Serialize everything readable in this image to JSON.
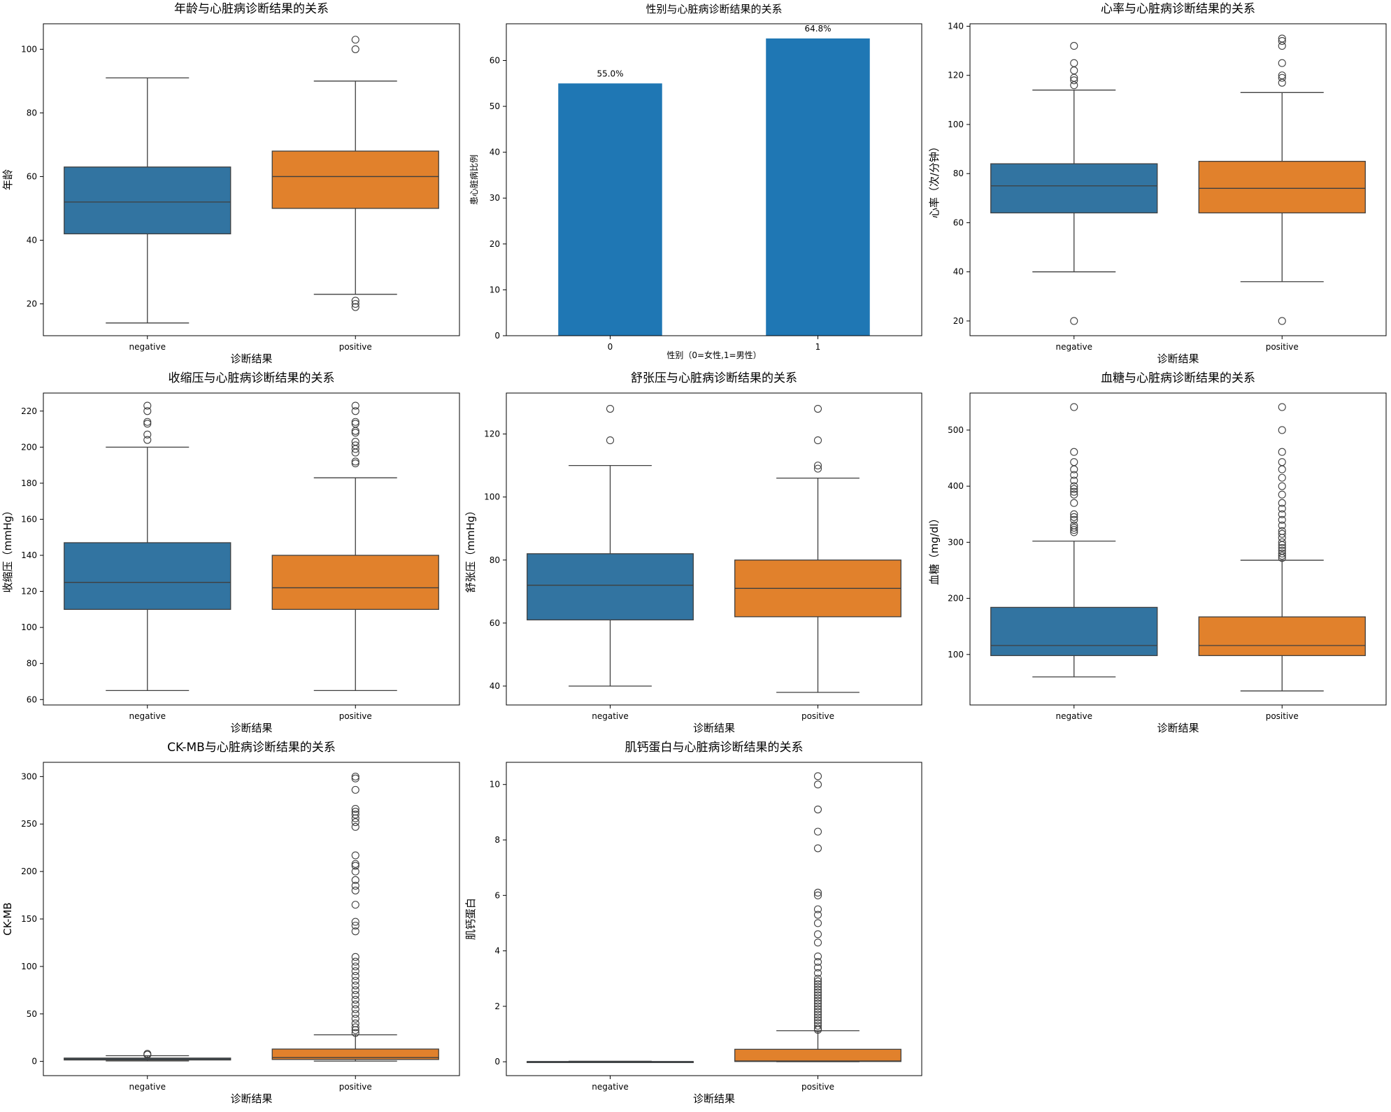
{
  "chart_data": [
    {
      "type": "box",
      "title": "年龄与心脏病诊断结果的关系",
      "xlabel": "诊断结果",
      "ylabel": "年龄",
      "categories": [
        "negative",
        "positive"
      ],
      "ylim": [
        10,
        108
      ],
      "yticks": [
        20,
        40,
        60,
        80,
        100
      ],
      "boxes": [
        {
          "name": "negative",
          "color": "#3274a1",
          "q1": 42,
          "median": 52,
          "q3": 63,
          "whisker_low": 14,
          "whisker_high": 91,
          "outliers": []
        },
        {
          "name": "positive",
          "color": "#e1812c",
          "q1": 50,
          "median": 60,
          "q3": 68,
          "whisker_low": 23,
          "whisker_high": 90,
          "outliers": [
            19,
            20,
            21,
            100,
            103
          ]
        }
      ]
    },
    {
      "type": "bar",
      "title": "性别与心脏病诊断结果的关系",
      "xlabel": "性别（0=女性,1=男性）",
      "ylabel": "患心脏病比例",
      "categories": [
        "0",
        "1"
      ],
      "values": [
        55.0,
        64.8
      ],
      "data_labels": [
        "55.0%",
        "64.8%"
      ],
      "color": "#1f77b4",
      "ylim": [
        0,
        68
      ],
      "yticks": [
        0,
        10,
        20,
        30,
        40,
        50,
        60
      ]
    },
    {
      "type": "box",
      "title": "心率与心脏病诊断结果的关系",
      "xlabel": "诊断结果",
      "ylabel": "心率（次/分钟）",
      "categories": [
        "negative",
        "positive"
      ],
      "ylim": [
        14,
        141
      ],
      "yticks": [
        20,
        40,
        60,
        80,
        100,
        120,
        140
      ],
      "boxes": [
        {
          "name": "negative",
          "color": "#3274a1",
          "q1": 64,
          "median": 75,
          "q3": 84,
          "whisker_low": 40,
          "whisker_high": 114,
          "outliers": [
            20,
            116,
            118,
            119,
            122,
            125,
            132
          ]
        },
        {
          "name": "positive",
          "color": "#e1812c",
          "q1": 64,
          "median": 74,
          "q3": 85,
          "whisker_low": 36,
          "whisker_high": 113,
          "outliers": [
            20,
            117,
            119,
            120,
            125,
            132,
            134,
            135
          ]
        }
      ]
    },
    {
      "type": "box",
      "title": "收缩压与心脏病诊断结果的关系",
      "xlabel": "诊断结果",
      "ylabel": "收缩压（mmHg）",
      "categories": [
        "negative",
        "positive"
      ],
      "ylim": [
        57,
        230
      ],
      "yticks": [
        60,
        80,
        100,
        120,
        140,
        160,
        180,
        200,
        220
      ],
      "boxes": [
        {
          "name": "negative",
          "color": "#3274a1",
          "q1": 110,
          "median": 125,
          "q3": 147,
          "whisker_low": 65,
          "whisker_high": 200,
          "outliers": [
            204,
            207,
            213,
            214,
            220,
            223
          ]
        },
        {
          "name": "positive",
          "color": "#e1812c",
          "q1": 110,
          "median": 122,
          "q3": 140,
          "whisker_low": 65,
          "whisker_high": 183,
          "outliers": [
            191,
            192,
            197,
            199,
            201,
            203,
            208,
            209,
            213,
            214,
            220,
            223
          ]
        }
      ]
    },
    {
      "type": "box",
      "title": "舒张压与心脏病诊断结果的关系",
      "xlabel": "诊断结果",
      "ylabel": "舒张压（mmHg）",
      "categories": [
        "negative",
        "positive"
      ],
      "ylim": [
        34,
        133
      ],
      "yticks": [
        40,
        60,
        80,
        100,
        120
      ],
      "boxes": [
        {
          "name": "negative",
          "color": "#3274a1",
          "q1": 61,
          "median": 72,
          "q3": 82,
          "whisker_low": 40,
          "whisker_high": 110,
          "outliers": [
            118,
            128
          ]
        },
        {
          "name": "positive",
          "color": "#e1812c",
          "q1": 62,
          "median": 71,
          "q3": 80,
          "whisker_low": 38,
          "whisker_high": 106,
          "outliers": [
            109,
            110,
            118,
            128
          ]
        }
      ]
    },
    {
      "type": "box",
      "title": "血糖与心脏病诊断结果的关系",
      "xlabel": "诊断结果",
      "ylabel": "血糖（mg/dl）",
      "categories": [
        "negative",
        "positive"
      ],
      "ylim": [
        10,
        566
      ],
      "yticks": [
        100,
        200,
        300,
        400,
        500
      ],
      "boxes": [
        {
          "name": "negative",
          "color": "#3274a1",
          "q1": 98,
          "median": 116,
          "q3": 184,
          "whisker_low": 60,
          "whisker_high": 302,
          "outliers": [
            318,
            322,
            326,
            330,
            340,
            345,
            350,
            370,
            385,
            390,
            395,
            400,
            410,
            420,
            430,
            443,
            461,
            541
          ]
        },
        {
          "name": "positive",
          "color": "#e1812c",
          "q1": 98,
          "median": 116,
          "q3": 167,
          "whisker_low": 35,
          "whisker_high": 268,
          "outliers": [
            272,
            276,
            280,
            285,
            290,
            295,
            300,
            308,
            315,
            320,
            330,
            340,
            350,
            360,
            370,
            385,
            400,
            415,
            430,
            443,
            461,
            500,
            541
          ]
        }
      ]
    },
    {
      "type": "box",
      "title": "CK-MB与心脏病诊断结果的关系",
      "xlabel": "诊断结果",
      "ylabel": "CK-MB",
      "categories": [
        "negative",
        "positive"
      ],
      "ylim": [
        -15,
        315
      ],
      "yticks": [
        0,
        50,
        100,
        150,
        200,
        250,
        300
      ],
      "boxes": [
        {
          "name": "negative",
          "color": "#3274a1",
          "q1": 1.5,
          "median": 2.5,
          "q3": 3.5,
          "whisker_low": 0.5,
          "whisker_high": 6,
          "outliers": [
            7,
            8
          ]
        },
        {
          "name": "positive",
          "color": "#e1812c",
          "q1": 2,
          "median": 4,
          "q3": 13,
          "whisker_low": 0.3,
          "whisker_high": 28,
          "outliers": [
            30,
            33,
            36,
            40,
            45,
            50,
            55,
            60,
            65,
            70,
            75,
            80,
            85,
            90,
            95,
            100,
            105,
            110,
            137,
            143,
            147,
            165,
            180,
            185,
            191,
            200,
            206,
            208,
            217,
            247,
            252,
            256,
            260,
            263,
            266,
            286,
            298,
            300
          ]
        }
      ]
    },
    {
      "type": "box",
      "title": "肌钙蛋白与心脏病诊断结果的关系",
      "xlabel": "诊断结果",
      "ylabel": "肌钙蛋白",
      "categories": [
        "negative",
        "positive"
      ],
      "ylim": [
        -0.5,
        10.8
      ],
      "yticks": [
        0,
        2,
        4,
        6,
        8,
        10
      ],
      "boxes": [
        {
          "name": "negative",
          "color": "#3274a1",
          "q1": 0.004,
          "median": 0.006,
          "q3": 0.009,
          "whisker_low": 0.001,
          "whisker_high": 0.02,
          "outliers": []
        },
        {
          "name": "positive",
          "color": "#e1812c",
          "q1": 0.01,
          "median": 0.03,
          "q3": 0.45,
          "whisker_low": 0.001,
          "whisker_high": 1.12,
          "outliers": [
            1.15,
            1.2,
            1.3,
            1.4,
            1.5,
            1.6,
            1.7,
            1.8,
            1.9,
            2.0,
            2.1,
            2.2,
            2.3,
            2.4,
            2.5,
            2.6,
            2.7,
            2.8,
            2.9,
            3.0,
            3.2,
            3.4,
            3.6,
            3.8,
            4.3,
            4.6,
            5.0,
            5.3,
            5.5,
            6.0,
            6.1,
            7.7,
            8.3,
            9.1,
            10.0,
            10.3
          ]
        }
      ]
    }
  ]
}
